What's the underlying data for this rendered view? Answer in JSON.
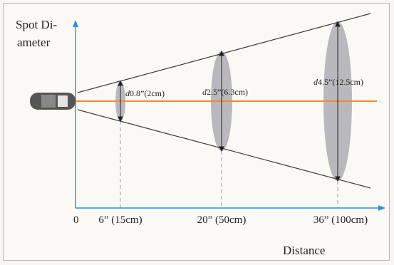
{
  "labels": {
    "y_axis_line1": "Spot Di-",
    "y_axis_line2": "ameter",
    "x_axis": "Distance",
    "origin": "0"
  },
  "ticks": [
    "6” (15cm)",
    "20” (50cm)",
    "36” (100cm)"
  ],
  "spots": [
    {
      "label_italic": "d",
      "label_value": "0.8”(2cm)"
    },
    {
      "label_italic": "d",
      "label_value": "2.5”(6.3cm)"
    },
    {
      "label_italic": "d",
      "label_value": "4.5”(12.5cm)"
    }
  ],
  "colors": {
    "axis": "#2f8fe0",
    "beam": "#f08a2c",
    "cone": "#3a3a3a",
    "spot": "#b9b9bd",
    "sensor": "#555555"
  }
}
